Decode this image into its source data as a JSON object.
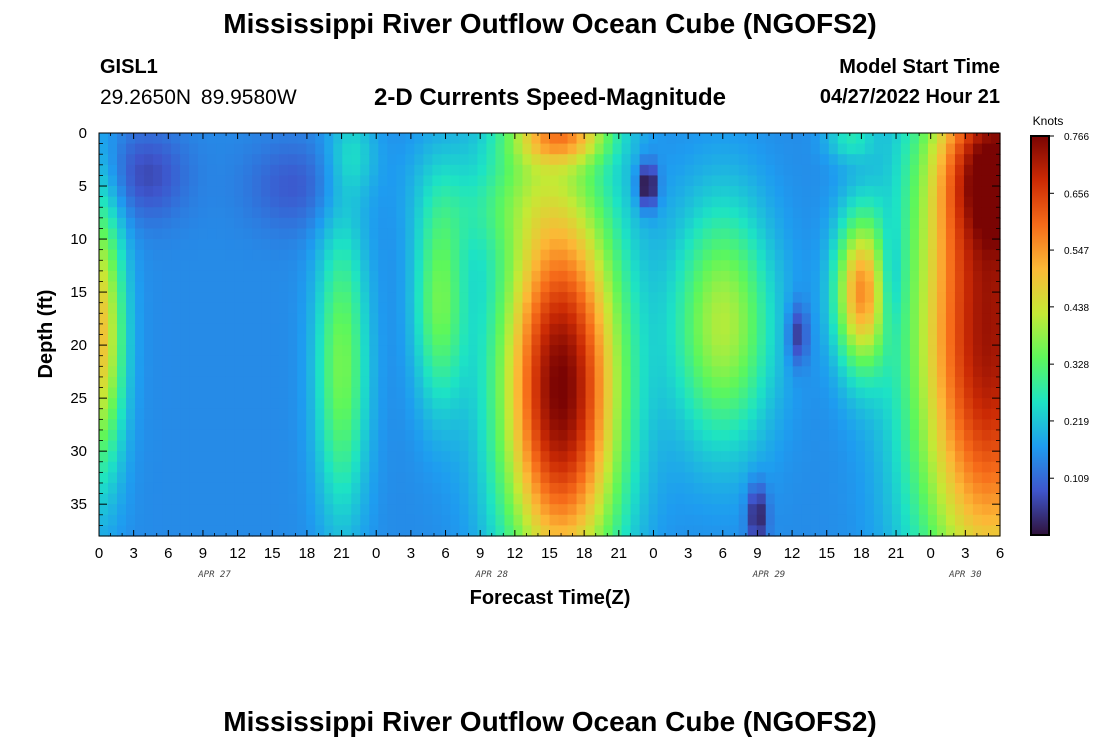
{
  "header": {
    "title": "Mississippi River Outflow Ocean Cube (NGOFS2)",
    "station": "GISL1",
    "coordinates": "29.2650N  89.9580W",
    "chart_title": "2-D Currents Speed-Magnitude",
    "model_start_label": "Model Start Time",
    "model_start_value": "04/27/2022 Hour 21"
  },
  "footer": {
    "title": "Mississippi River Outflow Ocean Cube (NGOFS2)"
  },
  "chart_data": {
    "type": "heatmap",
    "title": "2-D Currents Speed-Magnitude",
    "xlabel": "Forecast Time(Z)",
    "ylabel": "Depth (ft)",
    "x_range_hours": [
      0,
      78
    ],
    "y_range": [
      0,
      38
    ],
    "y_inverted": true,
    "x_tick_labels": [
      "0",
      "3",
      "6",
      "9",
      "12",
      "15",
      "18",
      "21",
      "0",
      "3",
      "6",
      "9",
      "12",
      "15",
      "18",
      "21",
      "0",
      "3",
      "6",
      "9",
      "12",
      "15",
      "18",
      "21",
      "0",
      "3",
      "6"
    ],
    "x_tick_hours": [
      0,
      3,
      6,
      9,
      12,
      15,
      18,
      21,
      24,
      27,
      30,
      33,
      36,
      39,
      42,
      45,
      48,
      51,
      54,
      57,
      60,
      63,
      66,
      69,
      72,
      75,
      78
    ],
    "date_labels": [
      {
        "text": "APR 27",
        "hour": 10
      },
      {
        "text": "APR 28",
        "hour": 34
      },
      {
        "text": "APR 29",
        "hour": 58
      },
      {
        "text": "APR 30",
        "hour": 75
      }
    ],
    "y_ticks": [
      0,
      5,
      10,
      15,
      20,
      25,
      30,
      35
    ],
    "colorbar": {
      "unit": "Knots",
      "ticks": [
        "0.766",
        "0.656",
        "0.547",
        "0.438",
        "0.328",
        "0.219",
        "0.109"
      ],
      "min": 0.0,
      "max": 0.766,
      "colors": [
        "#30123b",
        "#3e55cc",
        "#1e9cf0",
        "#1de3c4",
        "#5df75b",
        "#c5e935",
        "#fcb836",
        "#f66b19",
        "#cb2a04",
        "#7a0403"
      ]
    },
    "field_features": [
      {
        "t": 0,
        "d": 19,
        "st": 1.5,
        "sd": 9,
        "a": 0.35
      },
      {
        "t": 4,
        "d": 4,
        "st": 2.5,
        "sd": 3,
        "a": -0.08
      },
      {
        "t": 17,
        "d": 5,
        "st": 3,
        "sd": 3,
        "a": -0.06
      },
      {
        "t": 21,
        "d": 22,
        "st": 1.6,
        "sd": 10,
        "a": 0.21
      },
      {
        "t": 22,
        "d": 2,
        "st": 1.5,
        "sd": 3,
        "a": 0.08
      },
      {
        "t": 29.5,
        "d": 16,
        "st": 1.6,
        "sd": 7,
        "a": 0.2
      },
      {
        "t": 33,
        "d": 4,
        "st": 2.5,
        "sd": 3,
        "a": -0.06
      },
      {
        "t": 34,
        "d": 5,
        "st": 4,
        "sd": 4,
        "a": 0.14
      },
      {
        "t": 40,
        "d": 24,
        "st": 3.6,
        "sd": 13,
        "a": 0.62
      },
      {
        "t": 40,
        "d": 0,
        "st": 3,
        "sd": 2,
        "a": 0.3
      },
      {
        "t": 47.5,
        "d": 5,
        "st": 0.6,
        "sd": 1.5,
        "a": -0.2
      },
      {
        "t": 54,
        "d": 18,
        "st": 3,
        "sd": 8,
        "a": 0.26
      },
      {
        "t": 57,
        "d": 36,
        "st": 0.6,
        "sd": 2,
        "a": -0.15
      },
      {
        "t": 60.5,
        "d": 19,
        "st": 0.6,
        "sd": 2,
        "a": -0.12
      },
      {
        "t": 66,
        "d": 15,
        "st": 1.6,
        "sd": 5,
        "a": 0.38
      },
      {
        "t": 65,
        "d": 0.5,
        "st": 1.5,
        "sd": 1.5,
        "a": 0.1
      },
      {
        "t": 68.5,
        "d": 14,
        "st": 0.8,
        "sd": 4,
        "a": -0.1
      },
      {
        "t": 77,
        "d": 19,
        "st": 4.5,
        "sd": 18,
        "a": 0.58
      },
      {
        "t": 78,
        "d": 3,
        "st": 3.5,
        "sd": 5,
        "a": 0.3
      }
    ]
  }
}
